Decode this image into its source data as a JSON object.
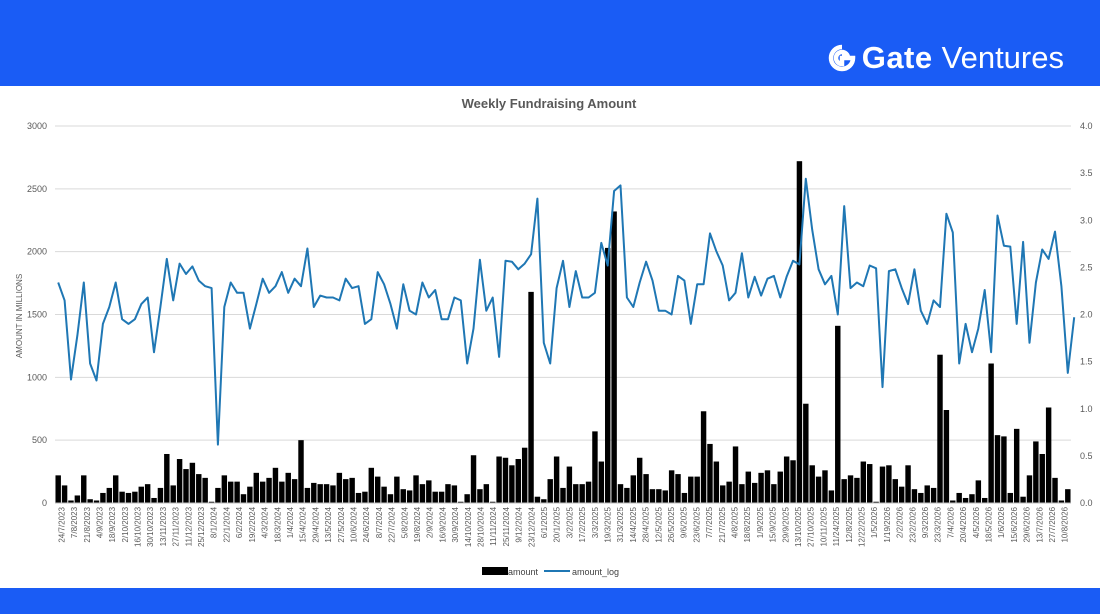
{
  "header": {
    "brand_name": "Gate",
    "brand_suffix": "Ventures",
    "brand_icon": "gate-logo-icon",
    "band_color": "#1a5cf5"
  },
  "chart_data": {
    "type": "bar",
    "title": "Weekly Fundraising Amount",
    "ylabel": "AMOUNT IN MILLIONS",
    "ylim": [
      0,
      3000
    ],
    "y2lim": [
      0,
      4.0
    ],
    "yticks": [
      0,
      500,
      1000,
      1500,
      2000,
      2500,
      3000
    ],
    "y2ticks": [
      "0.0",
      "0.5",
      "1.0",
      "1.5",
      "2.0",
      "2.5",
      "3.0",
      "3.5",
      "4.0"
    ],
    "grid": true,
    "legend_position": "bottom-center",
    "x_tick_labels": [
      "24/7/2023",
      "7/8/2023",
      "21/8/2023",
      "4/9/2023",
      "18/9/2023",
      "2/10/2023",
      "16/10/2023",
      "30/10/2023",
      "13/11/2023",
      "27/11/2023",
      "11/12/2023",
      "25/12/2023",
      "8/1/2024",
      "22/1/2024",
      "6/2/2024",
      "19/2/2024",
      "4/3/2024",
      "18/3/2024",
      "1/4/2024",
      "15/4/2024",
      "29/4/2024",
      "13/5/2024",
      "27/5/2024",
      "10/6/2024",
      "24/6/2024",
      "8/7/2024",
      "22/7/2024",
      "5/8/2024",
      "19/8/2024",
      "2/9/2024",
      "16/9/2024",
      "30/9/2024",
      "14/10/2024",
      "28/10/2024",
      "11/11/2024",
      "25/11/2024",
      "9/12/2024",
      "23/12/2024",
      "6/1/2025",
      "20/1/2025",
      "3/2/2025",
      "17/2/2025",
      "3/3/2025",
      "19/3/2025",
      "31/3/2025",
      "14/4/2025",
      "28/4/2025",
      "12/5/2025",
      "26/5/2025",
      "9/6/2025",
      "23/6/2025",
      "7/7/2025",
      "21/7/2025",
      "4/8/2025",
      "18/8/2025",
      "1/9/2025",
      "15/9/2025",
      "29/9/2025",
      "13/10/2025",
      "27/10/2025",
      "10/11/2025",
      "11/24/2025",
      "12/8/2025",
      "12/22/2025",
      "1/5/2026",
      "1/19/2026",
      "2/2/2026",
      "23/2/2026",
      "9/3/2026",
      "23/3/2026",
      "7/4/2026",
      "20/4/2026",
      "4/5/2026",
      "18/5/2026",
      "1/6/2026",
      "15/6/2026",
      "29/6/2026",
      "13/7/2026",
      "27/7/2026",
      "10/8/2026"
    ],
    "series": [
      {
        "name": "amount",
        "type": "bar",
        "color": "#000000",
        "values": [
          220,
          140,
          20,
          60,
          220,
          30,
          20,
          80,
          120,
          220,
          90,
          80,
          90,
          130,
          150,
          40,
          120,
          390,
          140,
          350,
          270,
          320,
          230,
          200,
          10,
          120,
          220,
          170,
          170,
          70,
          130,
          240,
          170,
          200,
          280,
          170,
          240,
          190,
          500,
          120,
          160,
          150,
          150,
          140,
          240,
          190,
          200,
          80,
          90,
          280,
          210,
          130,
          70,
          210,
          110,
          100,
          220,
          150,
          180,
          90,
          90,
          150,
          140,
          10,
          70,
          380,
          110,
          150,
          10,
          370,
          360,
          300,
          350,
          440,
          1680,
          50,
          30,
          190,
          370,
          120,
          290,
          150,
          150,
          170,
          570,
          330,
          2030,
          2320,
          150,
          120,
          220,
          360,
          230,
          110,
          110,
          100,
          260,
          230,
          80,
          210,
          210,
          730,
          470,
          330,
          140,
          170,
          450,
          150,
          250,
          160,
          240,
          260,
          150,
          250,
          370,
          340,
          2720,
          790,
          300,
          210,
          260,
          100,
          1410,
          190,
          220,
          200,
          330,
          310,
          10,
          290,
          300,
          190,
          130,
          300,
          110,
          80,
          140,
          120,
          1180,
          740,
          20,
          80,
          40,
          70,
          180,
          40,
          1110,
          540,
          530,
          80,
          590,
          50,
          220,
          490,
          390,
          760,
          200,
          20,
          110
        ]
      },
      {
        "name": "amount_log",
        "type": "line",
        "color": "#1f77b4",
        "values": [
          2.34,
          2.15,
          1.31,
          1.78,
          2.34,
          1.48,
          1.3,
          1.9,
          2.08,
          2.34,
          1.95,
          1.9,
          1.95,
          2.11,
          2.18,
          1.6,
          2.08,
          2.59,
          2.15,
          2.54,
          2.43,
          2.51,
          2.36,
          2.3,
          2.28,
          0.62,
          2.08,
          2.34,
          2.23,
          2.23,
          1.85,
          2.11,
          2.38,
          2.23,
          2.3,
          2.45,
          2.23,
          2.38,
          2.3,
          2.7,
          2.08,
          2.2,
          2.18,
          2.18,
          2.15,
          2.38,
          2.28,
          2.3,
          1.9,
          1.95,
          2.45,
          2.32,
          2.11,
          1.85,
          2.32,
          2.04,
          2.0,
          2.34,
          2.18,
          2.26,
          1.95,
          1.95,
          2.18,
          2.15,
          1.48,
          1.85,
          2.58,
          2.04,
          2.18,
          1.55,
          2.57,
          2.56,
          2.48,
          2.54,
          2.64,
          3.23,
          1.7,
          1.48,
          2.28,
          2.57,
          2.08,
          2.46,
          2.18,
          2.18,
          2.23,
          2.76,
          2.52,
          3.31,
          3.37,
          2.18,
          2.08,
          2.34,
          2.56,
          2.36,
          2.04,
          2.04,
          2.0,
          2.41,
          2.36,
          1.9,
          2.32,
          2.32,
          2.86,
          2.67,
          2.52,
          2.15,
          2.23,
          2.65,
          2.18,
          2.4,
          2.2,
          2.38,
          2.41,
          2.18,
          2.4,
          2.57,
          2.53,
          3.44,
          2.9,
          2.48,
          2.32,
          2.41,
          2.0,
          3.15,
          2.28,
          2.34,
          2.3,
          2.52,
          2.49,
          1.23,
          2.46,
          2.48,
          2.28,
          2.11,
          2.48,
          2.04,
          1.9,
          2.15,
          2.08,
          3.07,
          2.87,
          1.48,
          1.9,
          1.6,
          1.85,
          2.26,
          1.6,
          3.05,
          2.73,
          2.72,
          1.9,
          2.77,
          1.7,
          2.34,
          2.69,
          2.59,
          2.88,
          2.3,
          1.38,
          1.97
        ]
      }
    ]
  }
}
